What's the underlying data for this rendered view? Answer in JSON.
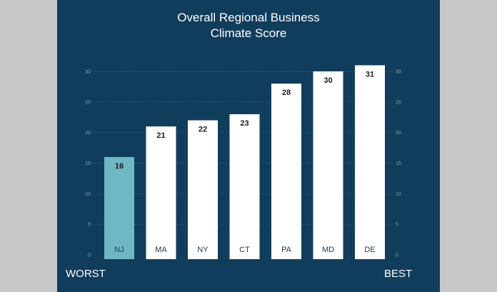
{
  "colors": {
    "background": "#113d5c",
    "bar": "#ffffff",
    "highlight": "#6fb7c3",
    "outer": "#c8c8c8"
  },
  "labels": {
    "worst": "WORST",
    "best": "BEST"
  },
  "chart_data": {
    "type": "bar",
    "title_lines": [
      "Overall Regional Business",
      "Climate Score"
    ],
    "categories": [
      "NJ",
      "MA",
      "NY",
      "CT",
      "PA",
      "MD",
      "DE"
    ],
    "values": [
      16,
      21,
      22,
      23,
      28,
      30,
      31
    ],
    "highlight": "NJ",
    "ylim": [
      0,
      30
    ],
    "yticks": [
      0,
      5,
      10,
      15,
      20,
      25,
      30
    ],
    "grid": true,
    "xlabel": "",
    "ylabel": ""
  }
}
